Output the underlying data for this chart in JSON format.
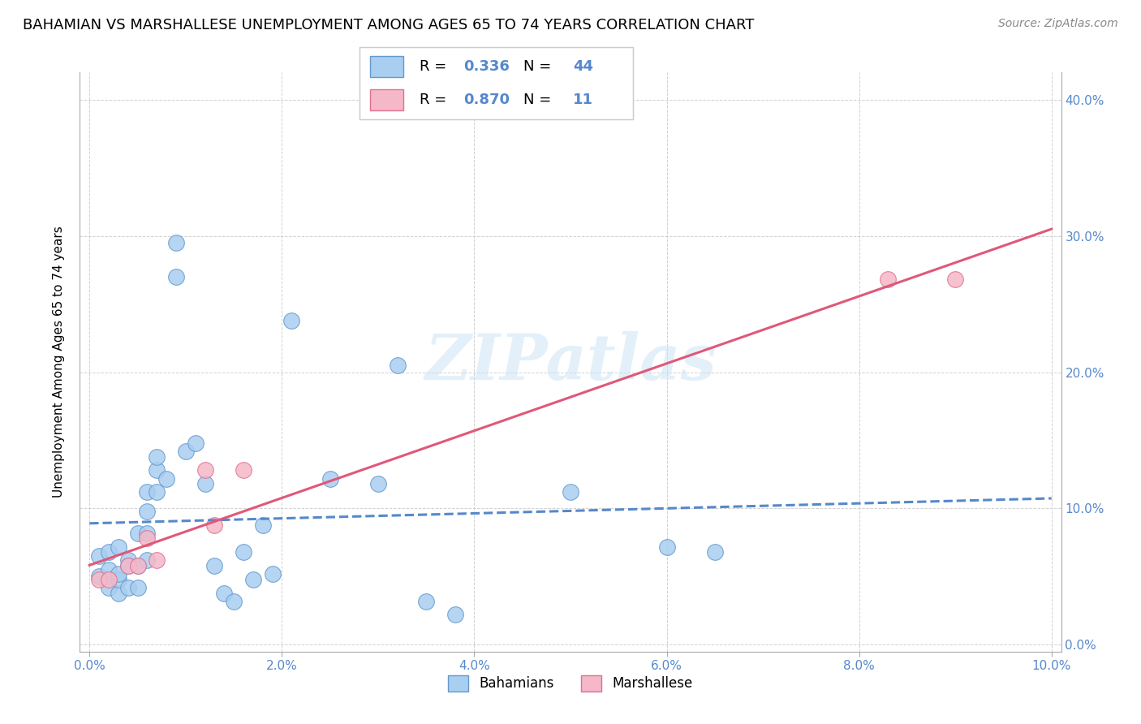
{
  "title": "BAHAMIAN VS MARSHALLESE UNEMPLOYMENT AMONG AGES 65 TO 74 YEARS CORRELATION CHART",
  "source": "Source: ZipAtlas.com",
  "ylabel_label": "Unemployment Among Ages 65 to 74 years",
  "xlim": [
    -0.001,
    0.101
  ],
  "ylim": [
    -0.005,
    0.42
  ],
  "bahamian_x": [
    0.001,
    0.001,
    0.002,
    0.002,
    0.002,
    0.003,
    0.003,
    0.003,
    0.003,
    0.004,
    0.004,
    0.004,
    0.005,
    0.005,
    0.005,
    0.006,
    0.006,
    0.006,
    0.006,
    0.007,
    0.007,
    0.007,
    0.008,
    0.009,
    0.009,
    0.01,
    0.011,
    0.012,
    0.013,
    0.014,
    0.015,
    0.016,
    0.017,
    0.018,
    0.019,
    0.021,
    0.025,
    0.03,
    0.032,
    0.035,
    0.038,
    0.05,
    0.06,
    0.065
  ],
  "bahamian_y": [
    0.05,
    0.065,
    0.042,
    0.055,
    0.068,
    0.038,
    0.048,
    0.052,
    0.072,
    0.062,
    0.042,
    0.058,
    0.042,
    0.058,
    0.082,
    0.062,
    0.082,
    0.098,
    0.112,
    0.128,
    0.112,
    0.138,
    0.122,
    0.295,
    0.27,
    0.142,
    0.148,
    0.118,
    0.058,
    0.038,
    0.032,
    0.068,
    0.048,
    0.088,
    0.052,
    0.238,
    0.122,
    0.118,
    0.205,
    0.032,
    0.022,
    0.112,
    0.072,
    0.068
  ],
  "marshallese_x": [
    0.001,
    0.002,
    0.004,
    0.005,
    0.006,
    0.007,
    0.012,
    0.013,
    0.016,
    0.083,
    0.09
  ],
  "marshallese_y": [
    0.048,
    0.048,
    0.058,
    0.058,
    0.078,
    0.062,
    0.128,
    0.088,
    0.128,
    0.268,
    0.268
  ],
  "bahamian_color": "#a8cef0",
  "marshallese_color": "#f5b8c8",
  "bahamian_edge_color": "#6699cc",
  "marshallese_edge_color": "#e07090",
  "trend_bahamian_color": "#5588cc",
  "trend_marshallese_color": "#e05878",
  "legend_R_bahamian": "0.336",
  "legend_N_bahamian": "44",
  "legend_R_marshallese": "0.870",
  "legend_N_marshallese": "11",
  "watermark": "ZIPatlas",
  "grid_color": "#cccccc",
  "title_fontsize": 13,
  "axis_label_fontsize": 11,
  "tick_fontsize": 11,
  "tick_color": "#5588cc",
  "xlabel_color": "#5588cc"
}
